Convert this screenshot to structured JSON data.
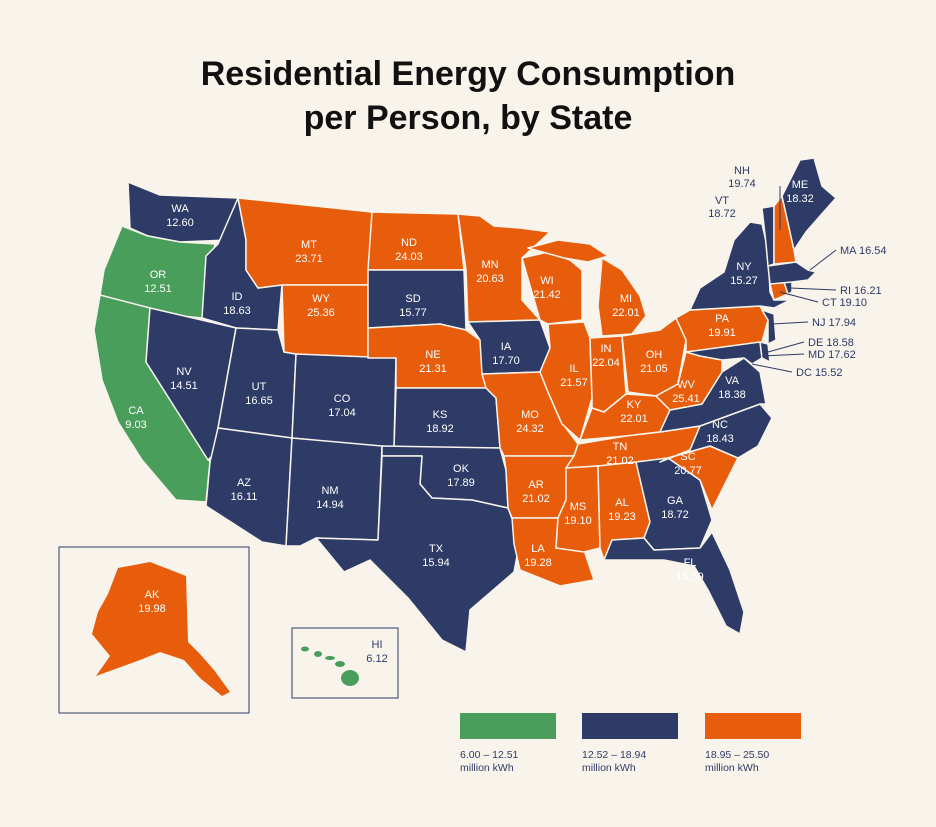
{
  "title": {
    "line1": "Residential Energy Consumption",
    "line2": "per Person, by State"
  },
  "colors": {
    "low": "#4a9e5c",
    "mid": "#2d3b66",
    "high": "#e85d0c",
    "background": "#f8f4ec",
    "text_dark": "#111111",
    "callout_text": "#2d3b66"
  },
  "states": [
    {
      "abbr": "WA",
      "value": "12.60"
    },
    {
      "abbr": "OR",
      "value": "12.51"
    },
    {
      "abbr": "CA",
      "value": "9.03"
    },
    {
      "abbr": "ID",
      "value": "18.63"
    },
    {
      "abbr": "NV",
      "value": "14.51"
    },
    {
      "abbr": "MT",
      "value": "23.71"
    },
    {
      "abbr": "WY",
      "value": "25.36"
    },
    {
      "abbr": "UT",
      "value": "16.65"
    },
    {
      "abbr": "AZ",
      "value": "16.11"
    },
    {
      "abbr": "CO",
      "value": "17.04"
    },
    {
      "abbr": "NM",
      "value": "14.94"
    },
    {
      "abbr": "ND",
      "value": "24.03"
    },
    {
      "abbr": "SD",
      "value": "15.77"
    },
    {
      "abbr": "NE",
      "value": "21.31"
    },
    {
      "abbr": "KS",
      "value": "18.92"
    },
    {
      "abbr": "OK",
      "value": "17.89"
    },
    {
      "abbr": "TX",
      "value": "15.94"
    },
    {
      "abbr": "MN",
      "value": "20.63"
    },
    {
      "abbr": "IA",
      "value": "17.70"
    },
    {
      "abbr": "MO",
      "value": "24.32"
    },
    {
      "abbr": "AR",
      "value": "21.02"
    },
    {
      "abbr": "LA",
      "value": "19.28"
    },
    {
      "abbr": "WI",
      "value": "21.42"
    },
    {
      "abbr": "IL",
      "value": "21.57"
    },
    {
      "abbr": "MI",
      "value": "22.01"
    },
    {
      "abbr": "IN",
      "value": "22.04"
    },
    {
      "abbr": "OH",
      "value": "21.05"
    },
    {
      "abbr": "KY",
      "value": "22.01"
    },
    {
      "abbr": "TN",
      "value": "21.02"
    },
    {
      "abbr": "MS",
      "value": "19.10"
    },
    {
      "abbr": "AL",
      "value": "19.23"
    },
    {
      "abbr": "GA",
      "value": "18.72"
    },
    {
      "abbr": "FL",
      "value": "15.59"
    },
    {
      "abbr": "SC",
      "value": "20.77"
    },
    {
      "abbr": "NC",
      "value": "18.43"
    },
    {
      "abbr": "VA",
      "value": "18.38"
    },
    {
      "abbr": "WV",
      "value": "25.41"
    },
    {
      "abbr": "PA",
      "value": "19.91"
    },
    {
      "abbr": "NY",
      "value": "15.27"
    },
    {
      "abbr": "ME",
      "value": "18.32"
    },
    {
      "abbr": "AK",
      "value": "19.98"
    },
    {
      "abbr": "HI",
      "value": "6.12"
    }
  ],
  "callouts": [
    {
      "abbr": "NH",
      "value": "19.74"
    },
    {
      "abbr": "VT",
      "value": "18.72"
    },
    {
      "abbr": "MA",
      "value": "16.54"
    },
    {
      "abbr": "RI",
      "value": "16.21"
    },
    {
      "abbr": "CT",
      "value": "19.10"
    },
    {
      "abbr": "NJ",
      "value": "17.94"
    },
    {
      "abbr": "DE",
      "value": "18.58"
    },
    {
      "abbr": "MD",
      "value": "17.62"
    },
    {
      "abbr": "DC",
      "value": "15.52"
    }
  ],
  "legend": [
    {
      "range": "6.00 – 12.51",
      "unit": "million kWh"
    },
    {
      "range": "12.52 – 18.94",
      "unit": "million kWh"
    },
    {
      "range": "18.95 – 25.50",
      "unit": "million kWh"
    }
  ]
}
